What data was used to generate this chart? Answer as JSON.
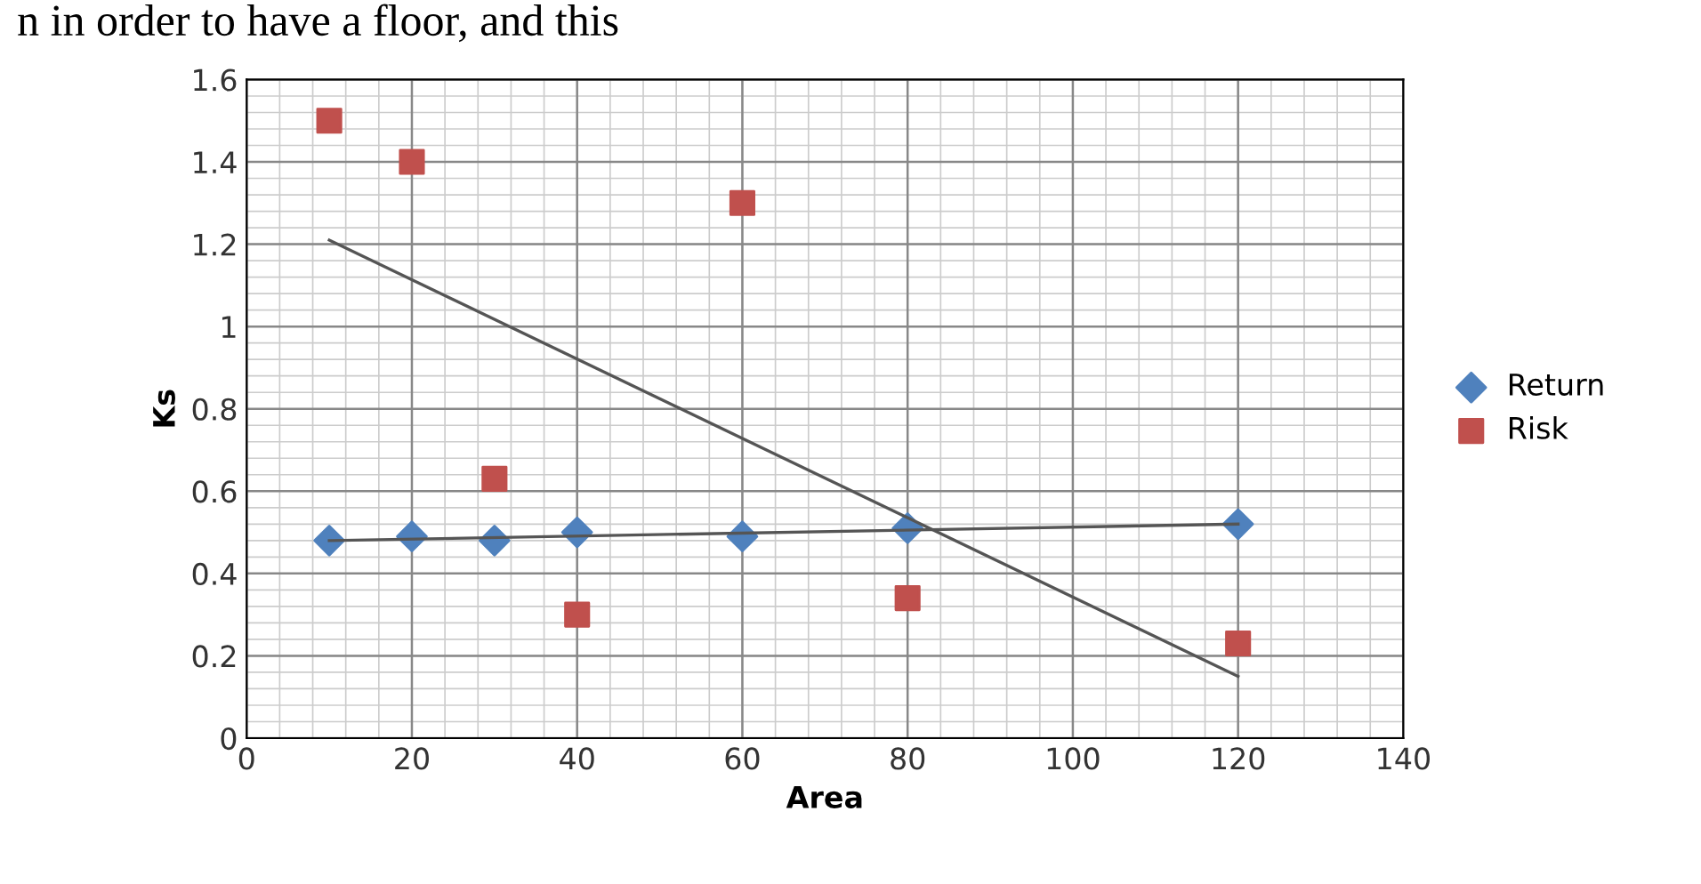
{
  "chart_data": {
    "type": "scatter",
    "xlabel": "Area",
    "ylabel": "Ks",
    "annotations": [
      "n in order to have a floor, and this"
    ],
    "xlim": [
      0,
      140
    ],
    "xticks": [
      0,
      20,
      40,
      60,
      80,
      100,
      120,
      140
    ],
    "ylim": [
      0,
      1.6
    ],
    "yticks": [
      0,
      0.2,
      0.4,
      0.6,
      0.8,
      1,
      1.2,
      1.4,
      1.6
    ],
    "grid": true,
    "legend": "right",
    "series": [
      {
        "name": "Return",
        "color": "#4f81bd",
        "marker": "diamond",
        "x": [
          10,
          20,
          30,
          40,
          60,
          80,
          120
        ],
        "values": [
          0.48,
          0.49,
          0.48,
          0.5,
          0.49,
          0.51,
          0.52
        ]
      },
      {
        "name": "Risk",
        "color": "#c0504d",
        "marker": "square",
        "x": [
          10,
          20,
          30,
          40,
          60,
          80,
          120
        ],
        "values": [
          1.5,
          1.4,
          0.63,
          0.3,
          1.3,
          0.34,
          0.23
        ]
      },
      {
        "type": "line",
        "color": "#555555",
        "marker": "none",
        "x": [
          10,
          120
        ],
        "values": [
          0.48,
          0.52
        ]
      },
      {
        "type": "line",
        "color": "#555555",
        "marker": "none",
        "x": [
          10,
          120
        ],
        "values": [
          1.21,
          0.15
        ]
      }
    ]
  }
}
